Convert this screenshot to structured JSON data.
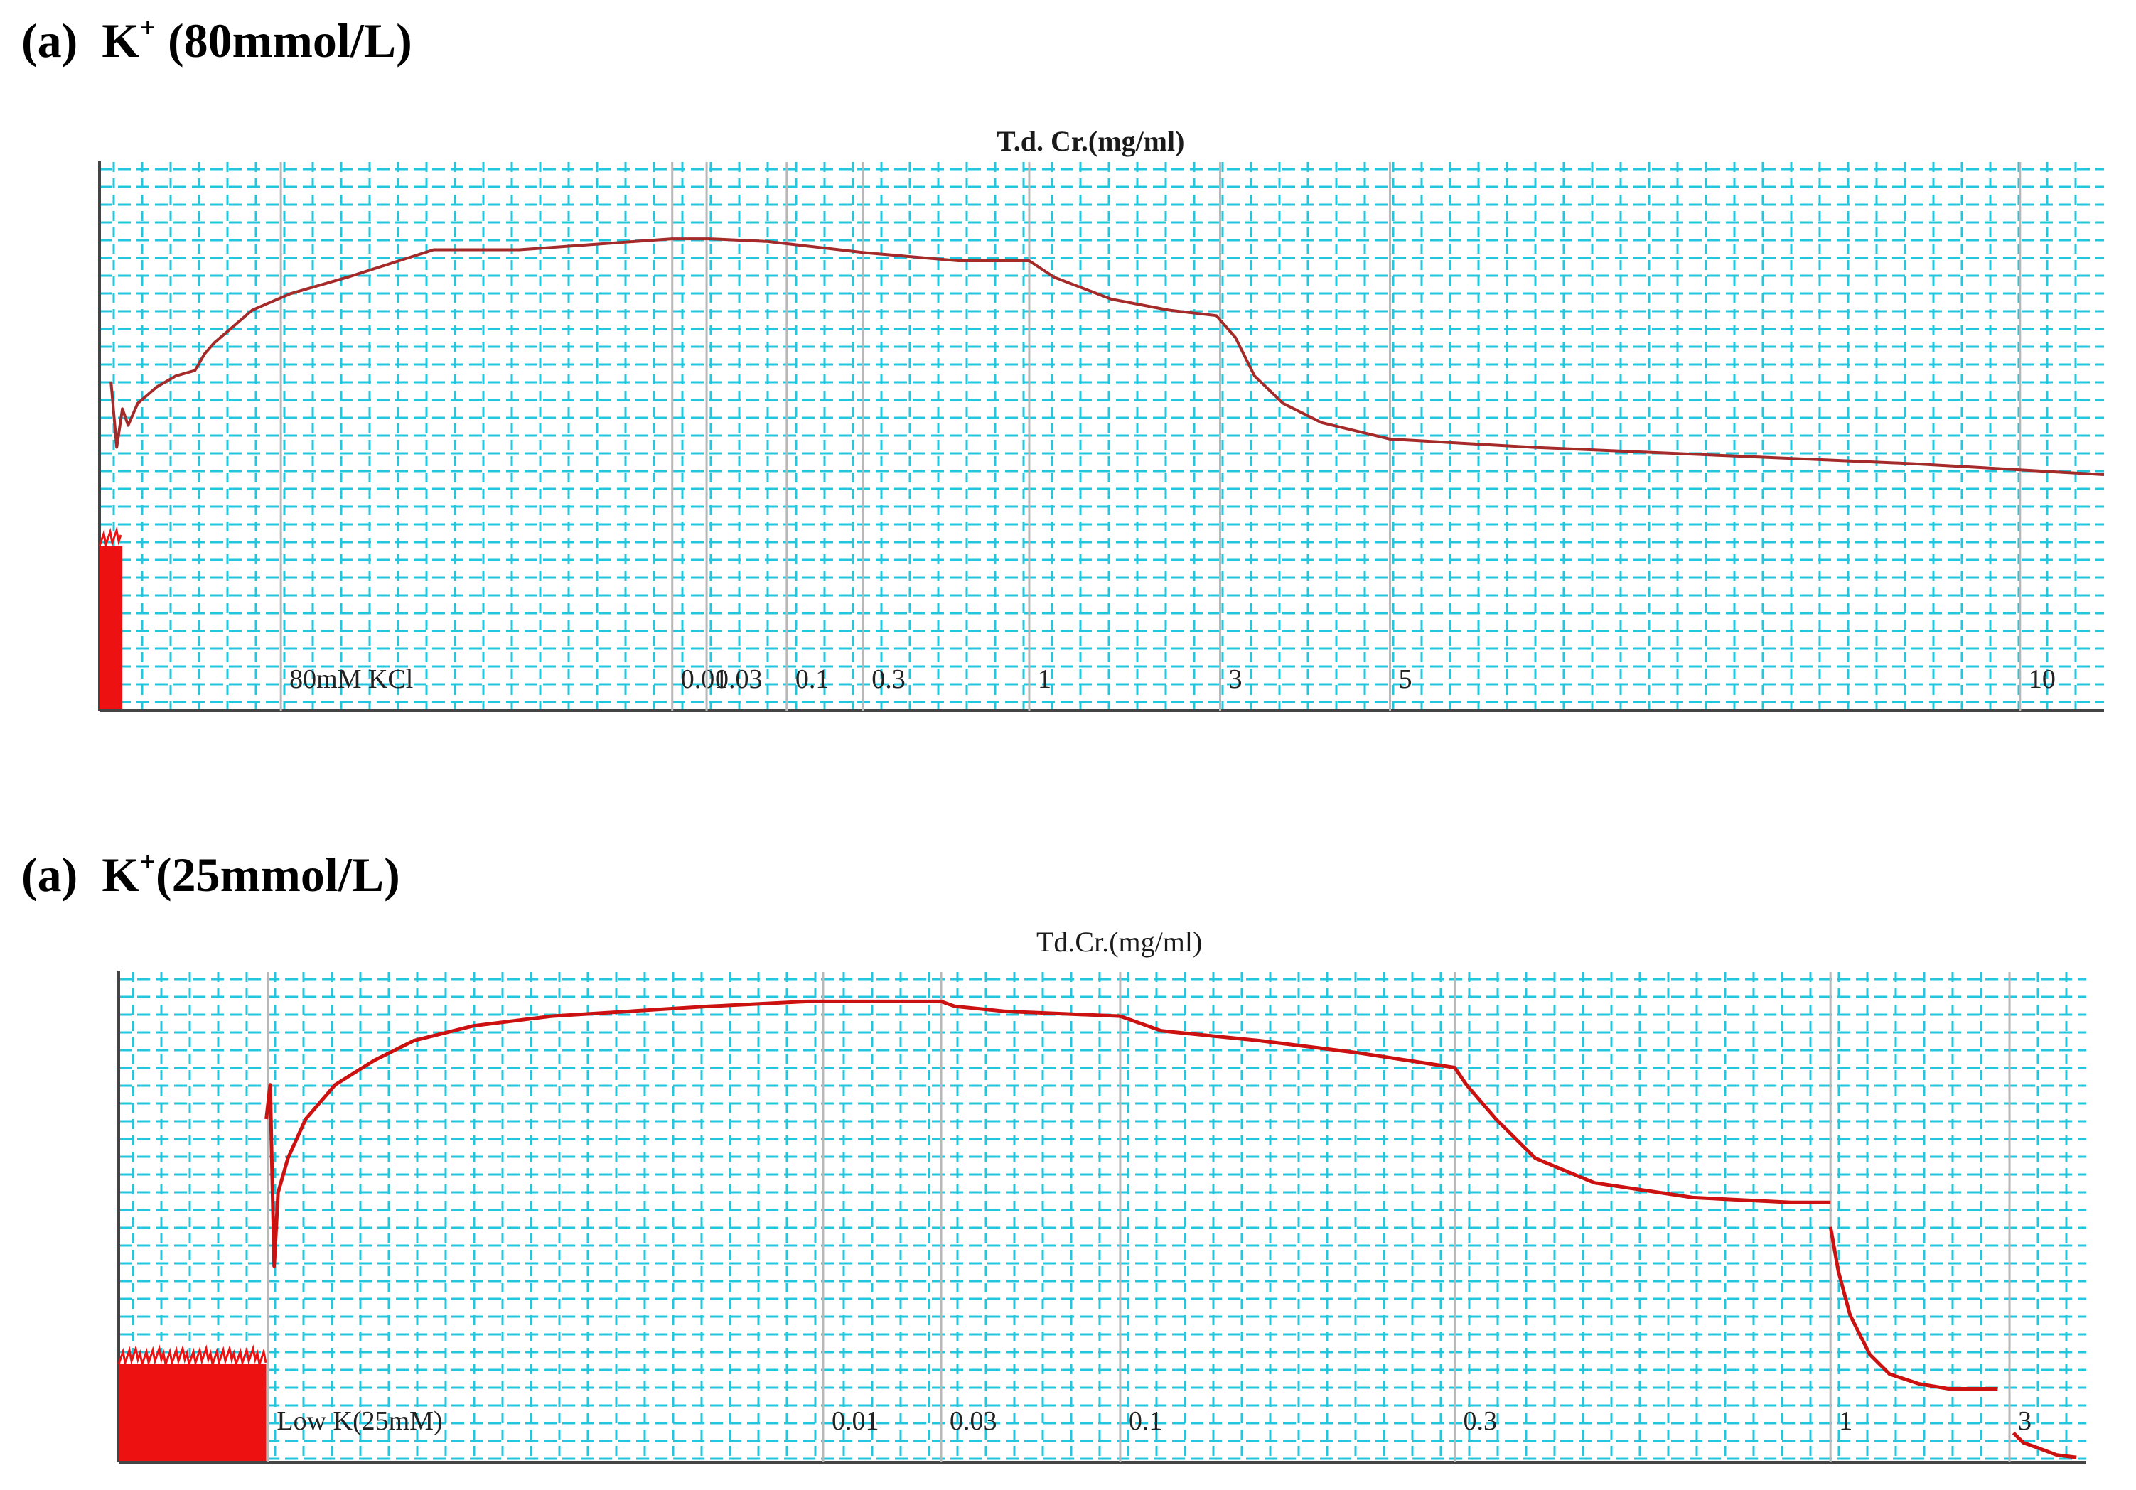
{
  "chart_data": [
    {
      "type": "line",
      "panel_label": "(a)",
      "panel_ion": "K",
      "panel_sup": "+",
      "panel_conc": " (80mmol/L)",
      "title": "T.d. Cr.(mg/ml)",
      "x_unit": "min",
      "x_range": [
        0,
        105
      ],
      "y_range": [
        0,
        100
      ],
      "y_unit": "%",
      "grid": true,
      "markers": [
        {
          "x": 9.5,
          "label": "80mM KCl"
        },
        {
          "x": 30.0,
          "label": "0.01"
        },
        {
          "x": 31.8,
          "label": "0.03"
        },
        {
          "x": 36.0,
          "label": "0.1"
        },
        {
          "x": 40.0,
          "label": "0.3"
        },
        {
          "x": 48.7,
          "label": "1"
        },
        {
          "x": 58.7,
          "label": "3"
        },
        {
          "x": 67.6,
          "label": "5"
        },
        {
          "x": 100.6,
          "label": "10"
        }
      ],
      "trace": {
        "color": "#a52a2a",
        "noise_band": {
          "x": [
            0,
            1.2
          ],
          "y": [
            3,
            30
          ]
        },
        "x": [
          0.6,
          0.9,
          1.2,
          1.5,
          2.0,
          3.0,
          4.0,
          5.0,
          5.5,
          6.0,
          8.0,
          10.0,
          13.0,
          17.5,
          22.0,
          28.0,
          30.0,
          32.0,
          35.0,
          40.0,
          45.0,
          48.7,
          50.0,
          53.0,
          56.0,
          58.5,
          59.5,
          60.5,
          62.0,
          64.0,
          67.6,
          75.0,
          85.0,
          95.0,
          105.0
        ],
        "y": [
          60,
          48,
          55,
          52,
          56,
          59,
          61,
          62,
          65,
          67,
          73,
          76,
          79,
          84,
          84,
          85.5,
          86,
          86,
          85.5,
          83.5,
          82,
          82,
          79,
          75,
          73,
          72,
          68,
          61,
          56,
          52.5,
          49.5,
          48,
          46.5,
          45,
          43
        ]
      }
    },
    {
      "type": "line",
      "panel_label": "(a)",
      "panel_ion": "K",
      "panel_sup": "+",
      "panel_conc": "(25mmol/L)",
      "title": "Td.Cr.(mg/ml)",
      "x_unit": "min",
      "x_range": [
        0,
        100
      ],
      "y_range": [
        0,
        100
      ],
      "y_unit": "%",
      "grid": true,
      "markers": [
        {
          "x": 7.6,
          "label": "Low K(25mM)"
        },
        {
          "x": 35.8,
          "label": "0.01"
        },
        {
          "x": 41.8,
          "label": "0.03"
        },
        {
          "x": 50.9,
          "label": "0.1"
        },
        {
          "x": 67.9,
          "label": "0.3"
        },
        {
          "x": 87.0,
          "label": "1"
        },
        {
          "x": 96.1,
          "label": "3"
        }
      ],
      "trace": {
        "color": "#cc1111",
        "noise_band": {
          "x": [
            0,
            7.5
          ],
          "y": [
            3,
            20
          ]
        },
        "x": [
          7.5,
          7.7,
          7.9,
          8.1,
          8.6,
          9.5,
          11.0,
          13.0,
          15.0,
          18.0,
          22.0,
          26.0,
          30.0,
          35.0,
          41.8,
          42.5,
          45.0,
          48.0,
          50.9,
          53.0,
          58.0,
          63.0,
          67.9,
          68.5,
          70.0,
          72.0,
          75.0,
          80.0,
          85.0,
          87.0
        ],
        "y": [
          70,
          77,
          40,
          55,
          62,
          70,
          77,
          82,
          86,
          89,
          91,
          92,
          93,
          94,
          94,
          93,
          92,
          91.5,
          91,
          88,
          86,
          83.5,
          80.5,
          77,
          70,
          62,
          57,
          54,
          53,
          53
        ],
        "segment2": {
          "x": [
            87.0,
            87.4,
            88.0,
            89.0,
            90.0,
            91.5,
            93.0,
            95.5
          ],
          "y": [
            48,
            39,
            30,
            22,
            18,
            16,
            15,
            15
          ]
        },
        "segment3": {
          "x": [
            96.3,
            96.8,
            97.5,
            98.5,
            99.5
          ],
          "y": [
            6,
            4,
            3,
            1.5,
            1
          ]
        }
      }
    }
  ]
}
